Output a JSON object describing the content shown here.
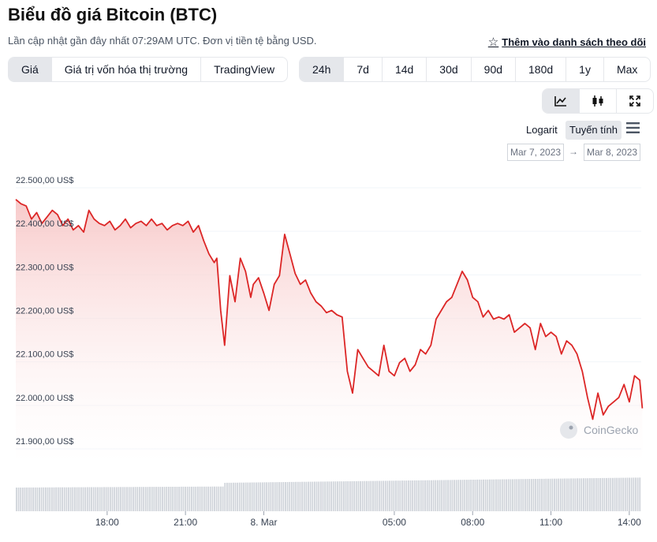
{
  "page": {
    "title": "Biểu đồ giá Bitcoin (BTC)",
    "subtitle": "Lần cập nhật gần đây nhất 07:29AM UTC. Đơn vị tiền tệ bằng USD.",
    "watchlist_label": "Thêm vào danh sách theo dõi"
  },
  "metric_tabs": [
    "Giá",
    "Giá trị vốn hóa thị trường",
    "TradingView"
  ],
  "active_metric": "Giá",
  "range_tabs": [
    "24h",
    "7d",
    "14d",
    "30d",
    "90d",
    "180d",
    "1y",
    "Max"
  ],
  "active_range": "24h",
  "chart_type_buttons": [
    "line-chart-icon",
    "candlestick-icon",
    "expand-icon"
  ],
  "active_chart_type": "line-chart-icon",
  "scale_options": {
    "log": "Logarit",
    "linear": "Tuyến tính",
    "active": "Tuyến tính"
  },
  "date_range": {
    "from": "Mar 7, 2023",
    "to": "Mar 8, 2023",
    "separator": "→"
  },
  "watermark": "CoinGecko",
  "colors": {
    "line": "#dc2626",
    "area_top": "#f7c4c4",
    "volume": "#d1d5db",
    "active_bg": "#e5e7eb"
  },
  "chart_data": {
    "type": "area",
    "title": "",
    "xlabel": "",
    "ylabel": "",
    "y_ticks": [
      "22.500,00 US$",
      "22.400,00 US$",
      "22.300,00 US$",
      "22.200,00 US$",
      "22.100,00 US$",
      "22.000,00 US$",
      "21.900,00 US$"
    ],
    "x_ticks": [
      "18:00",
      "21:00",
      "8. Mar",
      "05:00",
      "08:00",
      "11:00",
      "14:00"
    ],
    "ylim": [
      21900,
      22500
    ],
    "x_start_hour": 14.5,
    "grid": true,
    "series": [
      {
        "x": [
          14.5,
          14.7,
          14.9,
          15.1,
          15.3,
          15.5,
          15.7,
          15.9,
          16.1,
          16.3,
          16.5,
          16.7,
          16.9,
          17.1,
          17.3,
          17.5,
          17.7,
          17.9,
          18.1,
          18.3,
          18.5,
          18.7,
          18.9,
          19.1,
          19.3,
          19.5,
          19.7,
          19.9,
          20.1,
          20.3,
          20.5,
          20.7,
          20.9,
          21.1,
          21.3,
          21.5,
          21.7,
          21.9,
          22.1,
          22.2,
          22.35,
          22.5,
          22.7,
          22.9,
          23.1,
          23.3,
          23.5,
          23.6,
          23.8,
          24.0,
          24.2,
          24.4,
          24.6,
          24.8,
          25.0,
          25.2,
          25.4,
          25.6,
          25.8,
          26.0,
          26.2,
          26.4,
          26.6,
          26.8,
          27.0,
          27.2,
          27.4,
          27.6,
          27.8,
          28.0,
          28.2,
          28.4,
          28.6,
          28.8,
          29.0,
          29.2,
          29.4,
          29.6,
          29.8,
          30.0,
          30.2,
          30.4,
          30.6,
          30.8,
          31.0,
          31.2,
          31.4,
          31.6,
          31.8,
          32.0,
          32.2,
          32.4,
          32.6,
          32.8,
          33.0,
          33.2,
          33.4,
          33.6,
          33.8,
          34.0,
          34.2,
          34.4,
          34.6,
          34.8,
          35.0,
          35.2,
          35.4,
          35.6,
          35.8,
          36.0,
          36.2,
          36.4,
          36.6,
          36.8,
          37.0,
          37.2,
          37.4,
          37.6,
          37.8,
          38.0,
          38.2,
          38.4,
          38.5
        ],
        "values": [
          22455,
          22445,
          22440,
          22410,
          22425,
          22400,
          22415,
          22430,
          22420,
          22395,
          22410,
          22385,
          22395,
          22380,
          22430,
          22410,
          22400,
          22395,
          22405,
          22385,
          22395,
          22410,
          22390,
          22400,
          22405,
          22395,
          22410,
          22395,
          22400,
          22385,
          22395,
          22400,
          22395,
          22405,
          22380,
          22395,
          22360,
          22330,
          22310,
          22320,
          22200,
          22120,
          22280,
          22220,
          22320,
          22290,
          22230,
          22260,
          22275,
          22240,
          22200,
          22260,
          22280,
          22375,
          22330,
          22285,
          22260,
          22270,
          22240,
          22220,
          22210,
          22195,
          22200,
          22190,
          22185,
          22060,
          22010,
          22110,
          22090,
          22070,
          22060,
          22050,
          22120,
          22060,
          22050,
          22080,
          22090,
          22060,
          22075,
          22110,
          22100,
          22120,
          22180,
          22200,
          22220,
          22230,
          22260,
          22290,
          22270,
          22230,
          22220,
          22185,
          22200,
          22180,
          22185,
          22180,
          22190,
          22150,
          22160,
          22170,
          22160,
          22110,
          22170,
          22140,
          22150,
          22140,
          22100,
          22130,
          22120,
          22100,
          22060,
          22000,
          21950,
          22010,
          21960,
          21980,
          21990,
          22000,
          22030,
          21990,
          22050,
          22040,
          21975
        ]
      }
    ],
    "volume_relative": "flat, slightly rising after 8. Mar"
  }
}
